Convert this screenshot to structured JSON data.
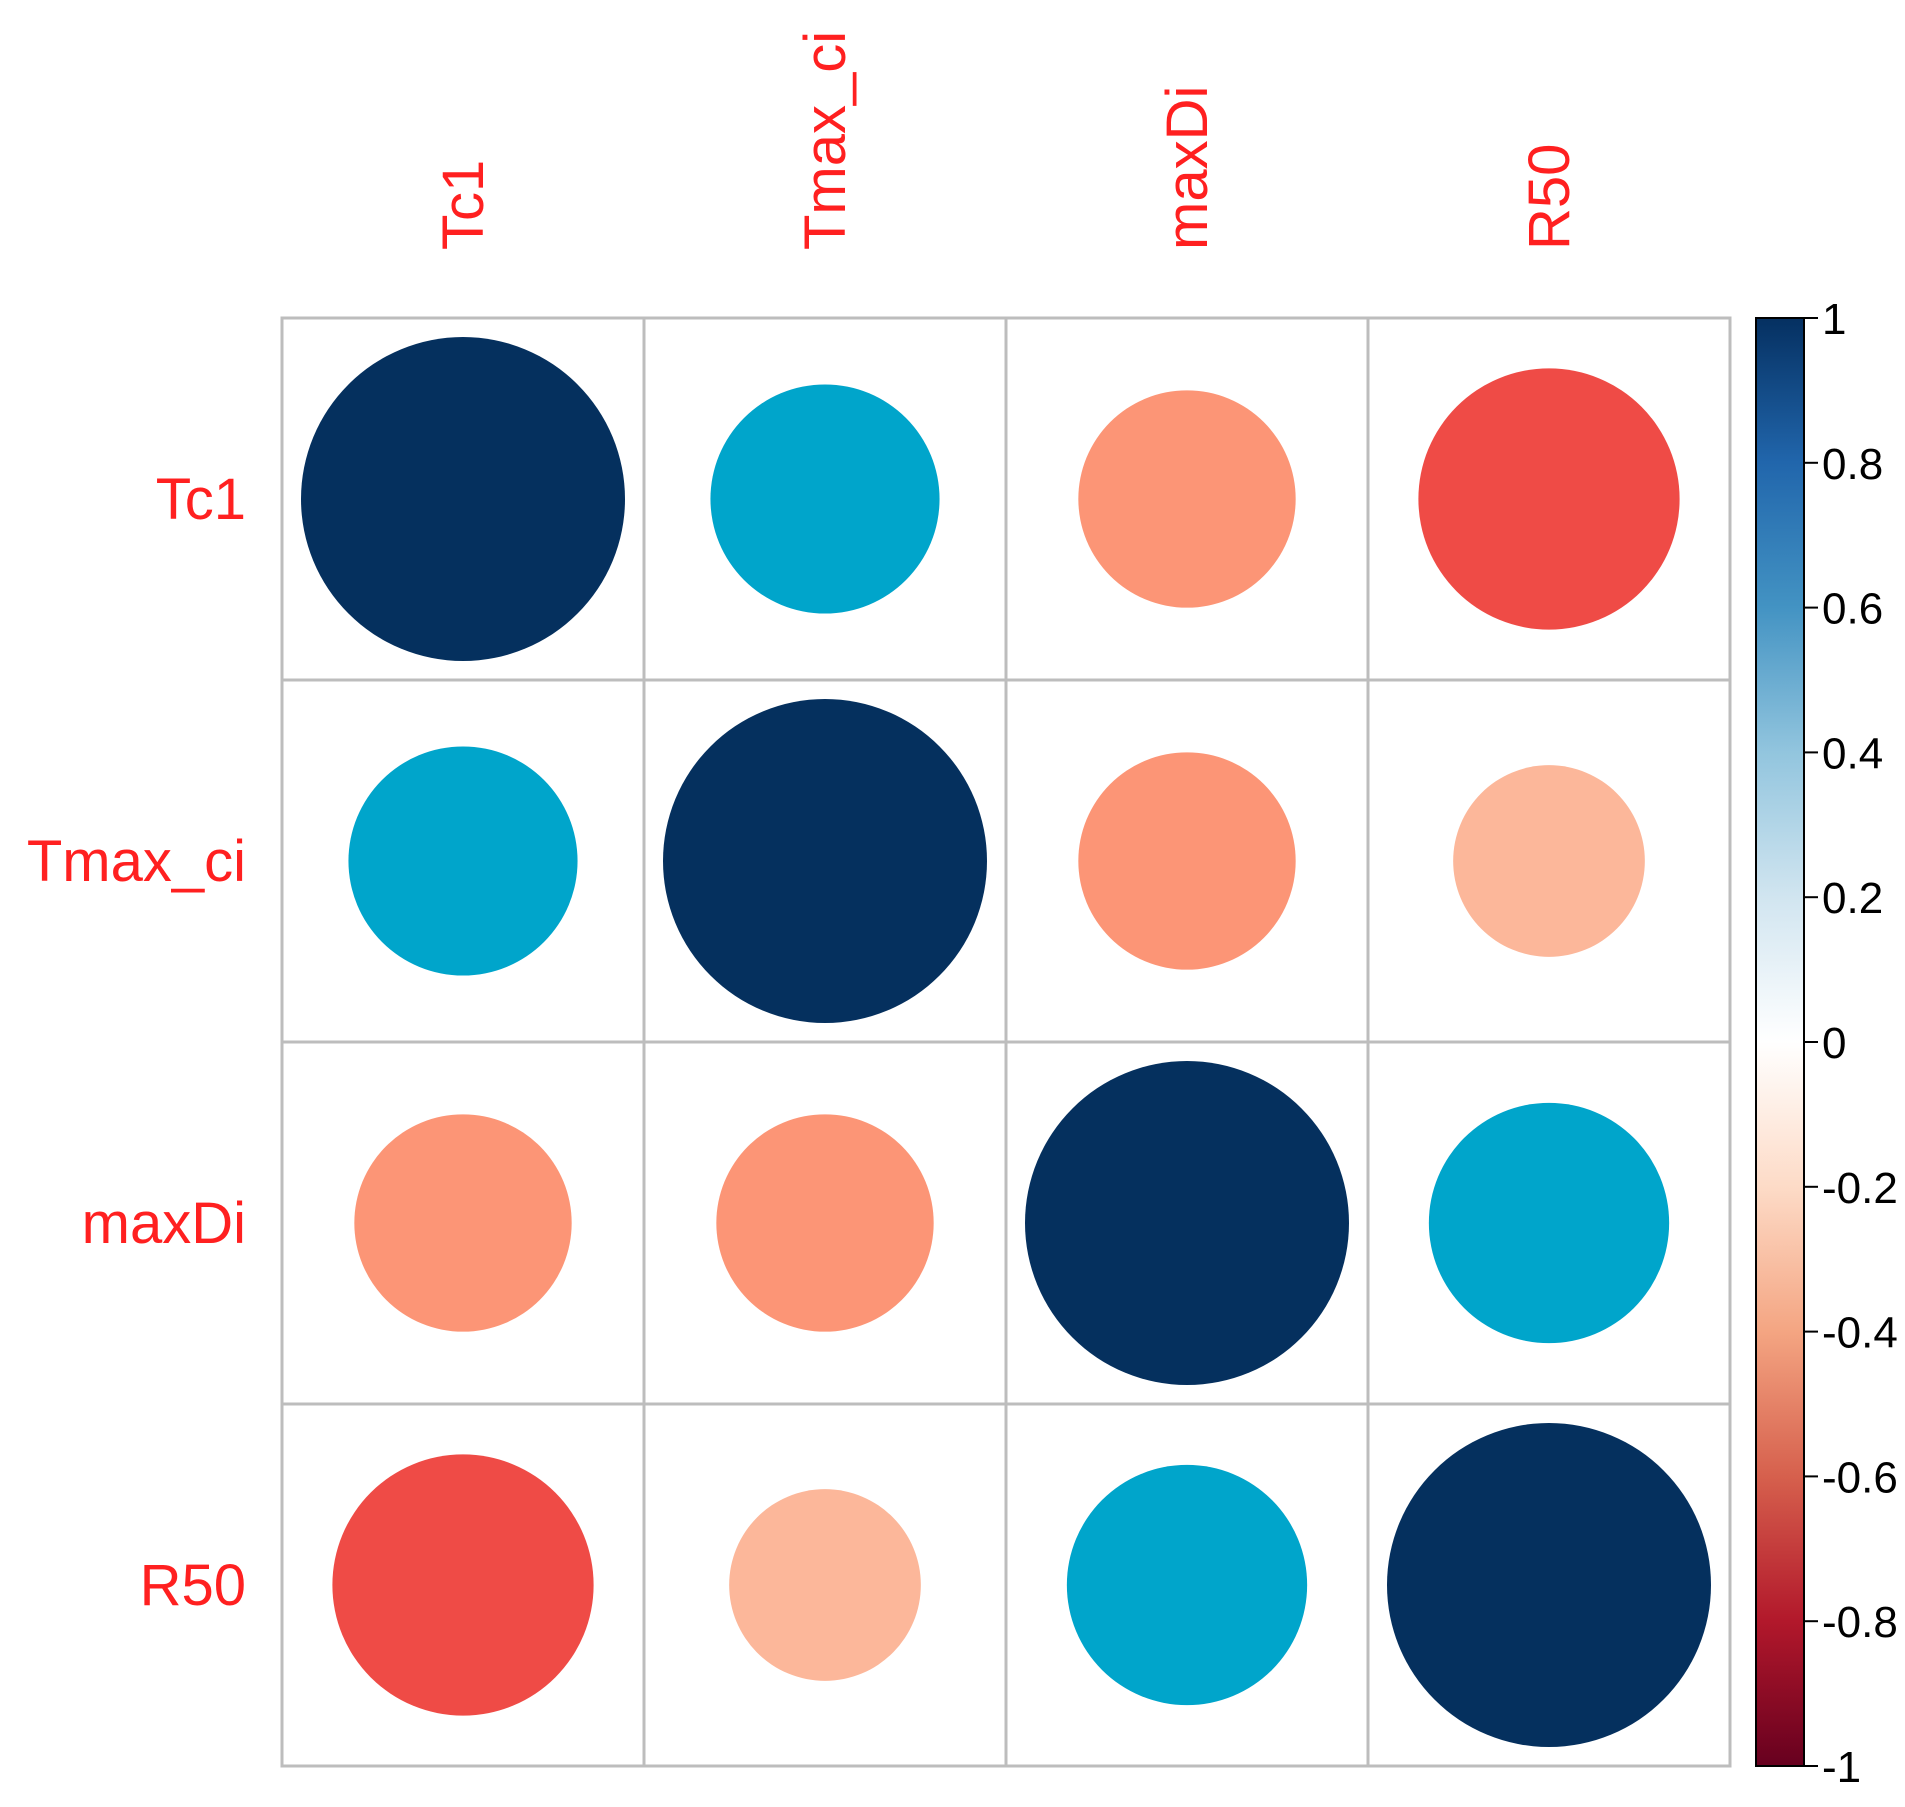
{
  "chart_data": {
    "type": "heatmap",
    "title": "",
    "subtitle": "",
    "variables": [
      "Tc1",
      "Tmax_ci",
      "maxDi",
      "R50"
    ],
    "matrix": [
      [
        1.0,
        0.5,
        -0.45,
        -0.65
      ],
      [
        0.5,
        1.0,
        -0.45,
        -0.35
      ],
      [
        -0.45,
        -0.45,
        1.0,
        0.55
      ],
      [
        -0.65,
        -0.35,
        0.55,
        1.0
      ]
    ],
    "glyph": "circle",
    "color_scale": {
      "min": -1,
      "max": 1,
      "ticks": [
        1,
        0.8,
        0.6,
        0.4,
        0.2,
        0,
        -0.2,
        -0.4,
        -0.6,
        -0.8,
        -1
      ],
      "tick_labels": [
        "1",
        "0.8",
        "0.6",
        "0.4",
        "0.2",
        "0",
        "-0.2",
        "-0.4",
        "-0.6",
        "-0.8",
        "-1"
      ],
      "stops": [
        {
          "value": -1.0,
          "color": "#67001f"
        },
        {
          "value": -0.8,
          "color": "#b2182b"
        },
        {
          "value": -0.6,
          "color": "#d6604d"
        },
        {
          "value": -0.4,
          "color": "#f4a582"
        },
        {
          "value": -0.2,
          "color": "#fddbc7"
        },
        {
          "value": 0.0,
          "color": "#ffffff"
        },
        {
          "value": 0.2,
          "color": "#d1e5f0"
        },
        {
          "value": 0.4,
          "color": "#92c5de"
        },
        {
          "value": 0.6,
          "color": "#4393c3"
        },
        {
          "value": 0.8,
          "color": "#2166ac"
        },
        {
          "value": 1.0,
          "color": "#053061"
        }
      ]
    },
    "cell_colors": [
      [
        "#05305e",
        "#00a5cb",
        "#fc9576",
        "#ef4b46"
      ],
      [
        "#00a5cb",
        "#05305e",
        "#fc9576",
        "#fcb79a"
      ],
      [
        "#fc9576",
        "#fc9576",
        "#05305e",
        "#00a5cb"
      ],
      [
        "#ef4b46",
        "#fcb79a",
        "#00a5cb",
        "#05305e"
      ]
    ],
    "legend_position": "right",
    "grid": true
  },
  "colors": {
    "label": "#ff2020",
    "grid": "#bdbdbd",
    "text": "#000000"
  }
}
